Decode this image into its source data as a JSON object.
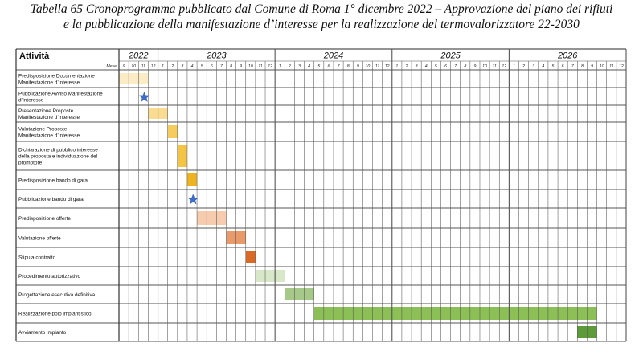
{
  "caption": {
    "line1": "Tabella 65 Cronoprogramma pubblicato dal Comune di Roma 1° dicembre 2022 – Approvazione del piano dei rifiuti",
    "line2": "e la pubblicazione della manifestazione d’interesse per la realizzazione del termovalorizzatore 22-2030"
  },
  "table": {
    "header_label": "Attività",
    "month_label": "Mese",
    "years": [
      {
        "label": "2022",
        "months": [
          "9",
          "10",
          "11",
          "12"
        ]
      },
      {
        "label": "2023",
        "months": [
          "1",
          "2",
          "3",
          "4",
          "5",
          "6",
          "7",
          "8",
          "9",
          "10",
          "11",
          "12"
        ]
      },
      {
        "label": "2024",
        "months": [
          "1",
          "2",
          "3",
          "4",
          "5",
          "6",
          "7",
          "8",
          "9",
          "10",
          "11",
          "12"
        ]
      },
      {
        "label": "2025",
        "months": [
          "1",
          "2",
          "3",
          "4",
          "5",
          "6",
          "7",
          "8",
          "9",
          "10",
          "11",
          "12"
        ]
      },
      {
        "label": "2026",
        "months": [
          "1",
          "2",
          "3",
          "4",
          "5",
          "6",
          "7",
          "8",
          "9",
          "10",
          "11",
          "12"
        ]
      }
    ],
    "activities": [
      {
        "lines": [
          "Predisposizione Documentazione",
          "Manifestazione d’Interesse"
        ],
        "bars": [
          {
            "start": 0,
            "end": 2,
            "color": "#fcecc6"
          }
        ]
      },
      {
        "lines": [
          "Pubblicazione Avviso Manifestazione",
          "d’Interesse"
        ],
        "star": 2
      },
      {
        "lines": [
          "Presentazione Proposte",
          "Manifestazione d’Interesse"
        ],
        "bars": [
          {
            "start": 3,
            "end": 4,
            "color": "#f9dc92"
          }
        ]
      },
      {
        "lines": [
          "Valutazione Proposte",
          "Manifestazione d’Interesse"
        ],
        "bars": [
          {
            "start": 5,
            "end": 5,
            "color": "#f6cc5f"
          }
        ]
      },
      {
        "lines": [
          "Dichiarazione di pubblico interesse",
          "della proposta e individuazione del",
          "promotore"
        ],
        "bars": [
          {
            "start": 6,
            "end": 6,
            "color": "#f4c545"
          }
        ]
      },
      {
        "lines": [
          "Predisposizione bando di gara"
        ],
        "bars": [
          {
            "start": 7,
            "end": 7,
            "color": "#efb320"
          }
        ]
      },
      {
        "lines": [
          "Pubblicazione bando di gara"
        ],
        "star": 7
      },
      {
        "lines": [
          "Predisposizione offerte"
        ],
        "bars": [
          {
            "start": 8,
            "end": 10,
            "color": "#f7cbae"
          }
        ]
      },
      {
        "lines": [
          "Valutazione offerte"
        ],
        "bars": [
          {
            "start": 11,
            "end": 12,
            "color": "#e99a6a"
          }
        ]
      },
      {
        "lines": [
          "Stipula contratto"
        ],
        "bars": [
          {
            "start": 13,
            "end": 13,
            "color": "#d86a25"
          }
        ]
      },
      {
        "lines": [
          "Procedimento autorizzativo"
        ],
        "bars": [
          {
            "start": 14,
            "end": 16,
            "color": "#d7e7c8"
          }
        ]
      },
      {
        "lines": [
          "Progettazione esecutiva definitiva"
        ],
        "bars": [
          {
            "start": 17,
            "end": 19,
            "color": "#a6c98a"
          }
        ]
      },
      {
        "lines": [
          "Realizzazione polo impiantistico"
        ],
        "bars": [
          {
            "start": 20,
            "end": 48,
            "color": "#8cc056"
          }
        ]
      },
      {
        "lines": [
          "Avviamento impianto"
        ],
        "bars": [
          {
            "start": 47,
            "end": 48,
            "color": "#5c9a3a"
          }
        ]
      }
    ],
    "colors": {
      "star": "#3f6cc6",
      "grid": "#555555",
      "border": "#333333"
    }
  }
}
